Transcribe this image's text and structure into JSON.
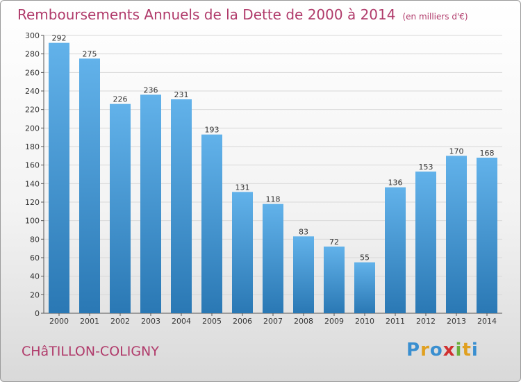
{
  "title": "Remboursements Annuels de la Dette de 2000 à 2014",
  "unit": "(en milliers d'€)",
  "commune": "CHâTILLON-COLIGNY",
  "logo_text": "Proxiti",
  "colors": {
    "title": "#b03a6a",
    "bar_top": "#62b2ea",
    "bar_bottom": "#2a78b4",
    "grid": "#d8d8d8"
  },
  "chart_data": {
    "type": "bar",
    "categories": [
      "2000",
      "2001",
      "2002",
      "2003",
      "2004",
      "2005",
      "2006",
      "2007",
      "2008",
      "2009",
      "2010",
      "2011",
      "2012",
      "2013",
      "2014"
    ],
    "values": [
      292,
      275,
      226,
      236,
      231,
      193,
      131,
      118,
      83,
      72,
      55,
      136,
      153,
      170,
      168
    ],
    "ylim": [
      0,
      300
    ],
    "yticks": [
      0,
      20,
      40,
      60,
      80,
      100,
      120,
      140,
      160,
      180,
      200,
      220,
      240,
      260,
      280,
      300
    ],
    "grid": true,
    "data_labels": true
  }
}
